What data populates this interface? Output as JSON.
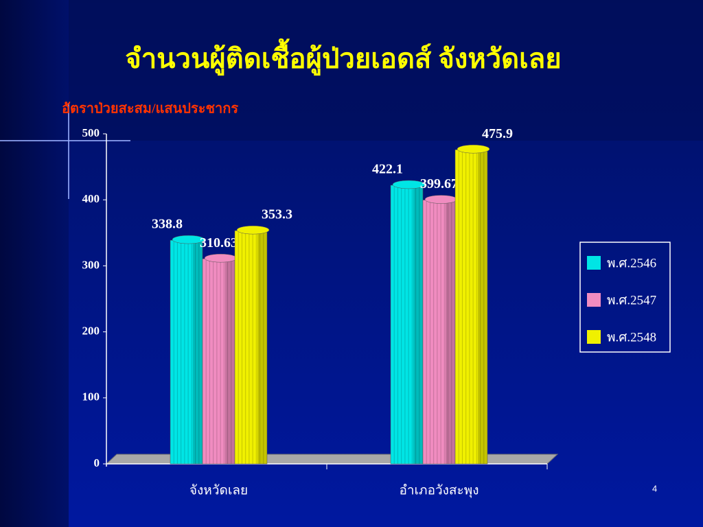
{
  "chart_data": {
    "type": "bar",
    "title": "จำนวนผู้ติดเชื้อผู้ป่วยเอดส์ จังหวัดเลย",
    "y_label": "อัตราป่วยสะสม/แสนประชากร",
    "categories": [
      "จังหวัดเลย",
      "อำเภอวังสะพุง"
    ],
    "series": [
      {
        "name": "พ.ศ.2546",
        "color": "#00e5e5",
        "values": [
          338.8,
          422.1
        ]
      },
      {
        "name": "พ.ศ.2547",
        "color": "#f08cc0",
        "values": [
          310.63,
          399.67
        ]
      },
      {
        "name": "พ.ศ.2548",
        "color": "#f0f000",
        "values": [
          353.3,
          475.9
        ]
      }
    ],
    "ylim": [
      0,
      500
    ],
    "yticks": [
      0,
      100,
      200,
      300,
      400,
      500
    ],
    "legend": "right"
  },
  "page_number": "4"
}
